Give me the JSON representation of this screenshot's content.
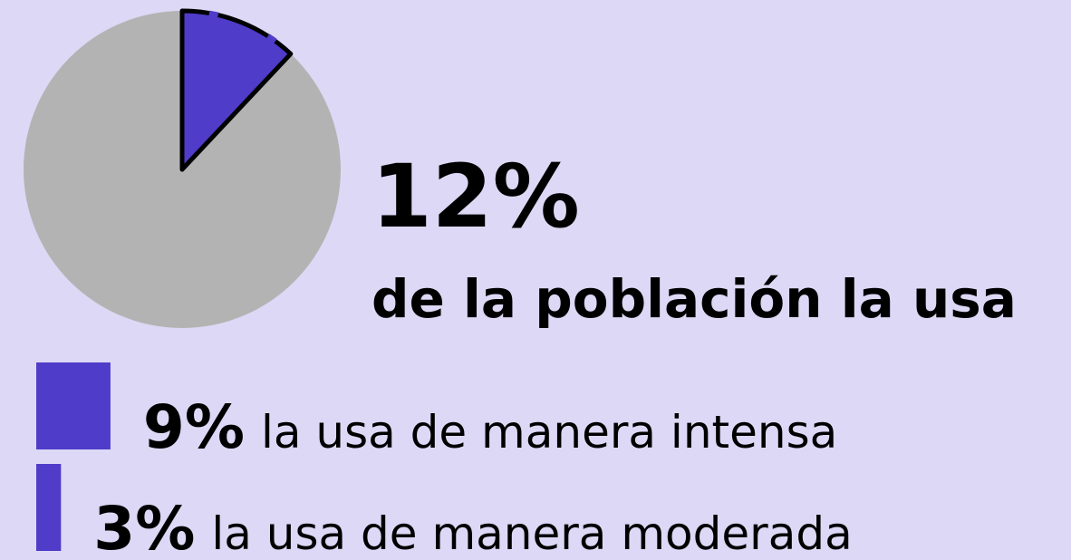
{
  "chart_data": [
    {
      "type": "pie",
      "values": [
        12
      ],
      "value_labels": [
        "12%"
      ],
      "subtitle": "de la población la usa",
      "color": "#4f3cc9",
      "rest_color": "#b3b3b3"
    },
    {
      "type": "bar",
      "orientation": "horizontal",
      "values": [
        9,
        3
      ],
      "value_labels": [
        "9%",
        "3%"
      ],
      "categories": [
        "la usa de manera intensa",
        "la usa de manera moderada"
      ],
      "color": "#4f3cc9"
    }
  ]
}
